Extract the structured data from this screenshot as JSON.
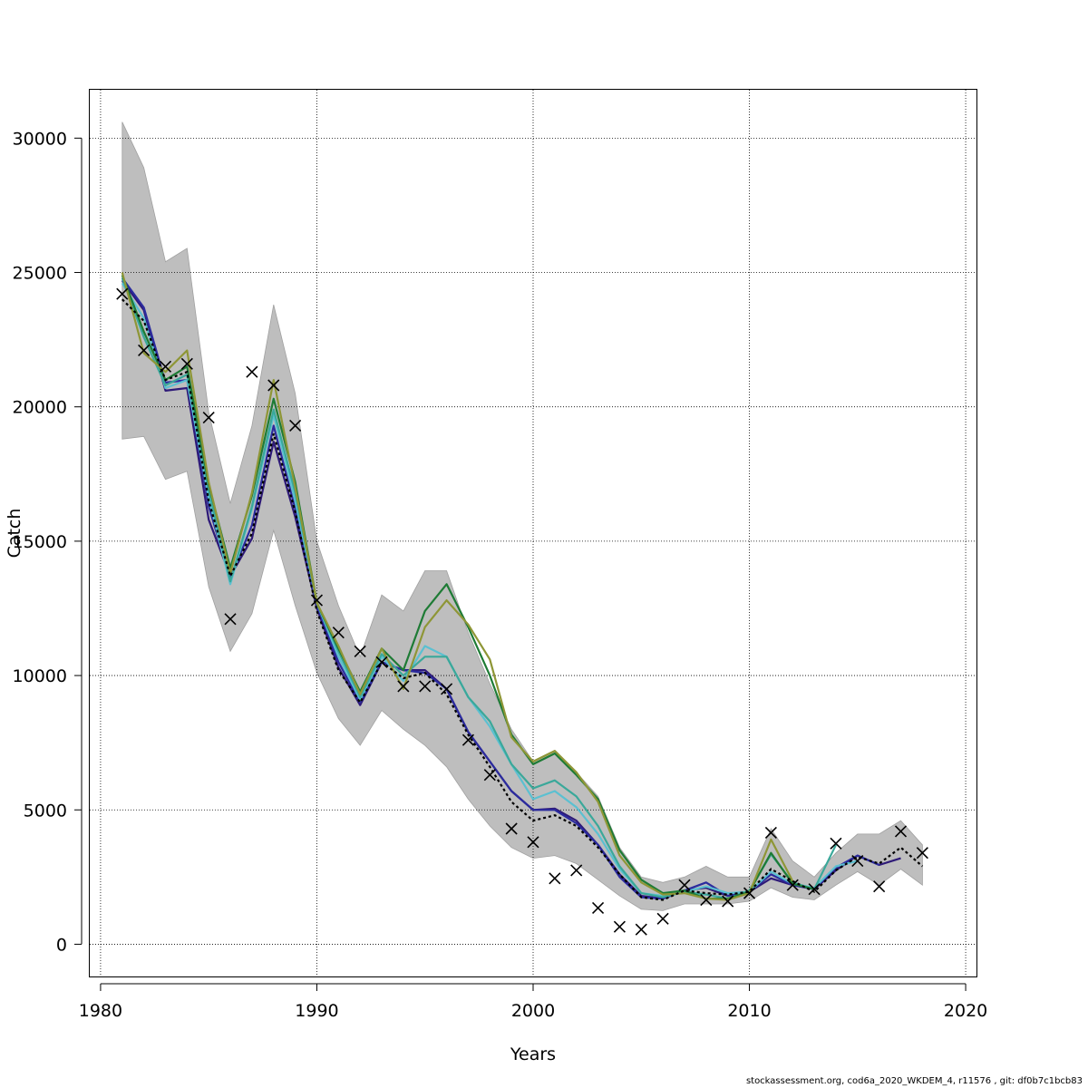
{
  "footer": "stockassessment.org, cod6a_2020_WKDEM_4, r11576 , git: df0b7c1bcb83",
  "chart_data": {
    "type": "line",
    "title": "",
    "xlabel": "Years",
    "ylabel": "Catch",
    "xlim": [
      1979.5,
      2020.5
    ],
    "ylim": [
      -1200,
      31800
    ],
    "grid": true,
    "xticks": [
      1980,
      1990,
      2000,
      2010,
      2020
    ],
    "yticks": [
      0,
      5000,
      10000,
      15000,
      20000,
      25000,
      30000
    ],
    "colors": {
      "band": "#bebebe",
      "dashed": "#000000",
      "observed": "#000000",
      "peels": [
        "#2e1a78",
        "#2b2b9e",
        "#5bc0d1",
        "#3aa89a",
        "#1e7b35",
        "#8e9636"
      ]
    },
    "band": {
      "x": [
        1981,
        1982,
        1983,
        1984,
        1985,
        1986,
        1987,
        1988,
        1989,
        1990,
        1991,
        1992,
        1993,
        1994,
        1995,
        1996,
        1997,
        1998,
        1999,
        2000,
        2001,
        2002,
        2003,
        2004,
        2005,
        2006,
        2007,
        2008,
        2009,
        2010,
        2011,
        2012,
        2013,
        2014,
        2015,
        2016,
        2017,
        2018
      ],
      "upper": [
        30600,
        28900,
        25400,
        25900,
        19800,
        16400,
        19300,
        23800,
        20500,
        15000,
        12600,
        10700,
        13000,
        12400,
        13900,
        13900,
        11600,
        9700,
        8000,
        6800,
        7200,
        6400,
        5500,
        3600,
        2500,
        2300,
        2500,
        2900,
        2500,
        2500,
        4300,
        3100,
        2500,
        3400,
        4100,
        4100,
        4600,
        3700
      ],
      "lower": [
        18800,
        18900,
        17300,
        17600,
        13300,
        10900,
        12300,
        15400,
        12600,
        10100,
        8400,
        7400,
        8700,
        8000,
        7400,
        6600,
        5400,
        4400,
        3600,
        3200,
        3300,
        3000,
        2400,
        1800,
        1300,
        1250,
        1500,
        1500,
        1500,
        1600,
        2100,
        1750,
        1650,
        2200,
        2700,
        2200,
        2800,
        2200
      ]
    },
    "series": [
      {
        "kind": "observed",
        "x": [
          1981,
          1982,
          1983,
          1984,
          1985,
          1986,
          1987,
          1988,
          1989,
          1990,
          1991,
          1992,
          1993,
          1994,
          1995,
          1996,
          1997,
          1998,
          1999,
          2000,
          2001,
          2002,
          2003,
          2004,
          2005,
          2006,
          2007,
          2008,
          2009,
          2010,
          2011,
          2012,
          2013,
          2014,
          2015,
          2016,
          2017,
          2018
        ],
        "values": [
          24200,
          22100,
          21500,
          21600,
          19600,
          12100,
          21300,
          20800,
          19300,
          12800,
          11600,
          10900,
          10500,
          9600,
          9600,
          9500,
          7600,
          6300,
          4300,
          3800,
          2450,
          2750,
          1350,
          650,
          550,
          950,
          2200,
          1650,
          1600,
          1900,
          4150,
          2200,
          2050,
          3750,
          3100,
          2150,
          4200,
          3400
        ]
      },
      {
        "kind": "dashed",
        "x": [
          1981,
          1982,
          1983,
          1984,
          1985,
          1986,
          1987,
          1988,
          1989,
          1990,
          1991,
          1992,
          1993,
          1994,
          1995,
          1996,
          1997,
          1998,
          1999,
          2000,
          2001,
          2002,
          2003,
          2004,
          2005,
          2006,
          2007,
          2008,
          2009,
          2010,
          2011,
          2012,
          2013,
          2014,
          2015,
          2016,
          2017,
          2018
        ],
        "values": [
          24000,
          23200,
          21000,
          21300,
          16500,
          13700,
          15300,
          19000,
          16100,
          12400,
          10200,
          9000,
          10500,
          9900,
          10100,
          9300,
          7800,
          6600,
          5300,
          4600,
          4800,
          4400,
          3600,
          2600,
          1750,
          1650,
          2000,
          1900,
          1850,
          1950,
          2800,
          2350,
          1950,
          2750,
          3250,
          3000,
          3600,
          2900
        ]
      },
      {
        "kind": "peel",
        "x": [
          1981,
          1982,
          1983,
          1984,
          1985,
          1986,
          1987,
          1988,
          1989,
          1990,
          1991,
          1992,
          1993,
          1994,
          1995,
          1996,
          1997,
          1998,
          1999,
          2000,
          2001,
          2002,
          2003,
          2004,
          2005,
          2006,
          2007,
          2008,
          2009,
          2010,
          2011,
          2012,
          2013,
          2014,
          2015,
          2016,
          2017
        ],
        "values": [
          24700,
          23600,
          20600,
          20700,
          15800,
          13700,
          15100,
          18700,
          15900,
          12500,
          10300,
          8900,
          10500,
          10200,
          10200,
          9500,
          7900,
          6800,
          5700,
          5000,
          5050,
          4600,
          3700,
          2600,
          1800,
          1700,
          2000,
          2100,
          1800,
          1950,
          2450,
          2200,
          2050,
          2750,
          3300,
          2950,
          3200
        ]
      },
      {
        "kind": "peel",
        "x": [
          1981,
          1982,
          1983,
          1984,
          1985,
          1986,
          1987,
          1988,
          1989,
          1990,
          1991,
          1992,
          1993,
          1994,
          1995,
          1996,
          1997,
          1998,
          1999,
          2000,
          2001,
          2002,
          2003,
          2004,
          2005,
          2006,
          2007,
          2008,
          2009,
          2010,
          2011,
          2012,
          2013,
          2014,
          2015,
          2016
        ],
        "values": [
          24800,
          23700,
          20900,
          21000,
          16300,
          13600,
          15600,
          19300,
          16200,
          12600,
          10500,
          9000,
          10500,
          10200,
          10100,
          9500,
          7900,
          6800,
          5700,
          5000,
          5000,
          4500,
          3700,
          2500,
          1750,
          1700,
          2000,
          2300,
          1800,
          1950,
          2600,
          2200,
          2050,
          2850,
          3300,
          2950
        ]
      },
      {
        "kind": "peel",
        "x": [
          1981,
          1982,
          1983,
          1984,
          1985,
          1986,
          1987,
          1988,
          1989,
          1990,
          1991,
          1992,
          1993,
          1994,
          1995,
          1996,
          1997,
          1998,
          1999,
          2000,
          2001,
          2002,
          2003,
          2004,
          2005,
          2006,
          2007,
          2008,
          2009,
          2010,
          2011,
          2012,
          2013,
          2014,
          2015
        ],
        "values": [
          24600,
          23300,
          20700,
          21000,
          16600,
          13400,
          16200,
          19700,
          16500,
          12700,
          10700,
          9100,
          10700,
          9800,
          11100,
          10700,
          9200,
          8100,
          6700,
          5400,
          5700,
          5100,
          4100,
          2800,
          1900,
          1800,
          1950,
          2150,
          1900,
          1950,
          2700,
          2250,
          2100,
          2900,
          3100
        ]
      },
      {
        "kind": "peel",
        "x": [
          1981,
          1982,
          1983,
          1984,
          1985,
          1986,
          1987,
          1988,
          1989,
          1990,
          1991,
          1992,
          1993,
          1994,
          1995,
          1996,
          1997,
          1998,
          1999,
          2000,
          2001,
          2002,
          2003,
          2004,
          2005,
          2006,
          2007,
          2008,
          2009,
          2010,
          2011,
          2012,
          2013,
          2014
        ],
        "values": [
          24800,
          22600,
          20800,
          21200,
          16900,
          13500,
          16300,
          19900,
          16800,
          12700,
          10900,
          9200,
          10800,
          10000,
          10700,
          10700,
          9200,
          8300,
          6700,
          5800,
          6100,
          5500,
          4400,
          2900,
          1900,
          1750,
          1950,
          1850,
          1700,
          2000,
          3350,
          2300,
          2050,
          3700
        ]
      },
      {
        "kind": "peel",
        "x": [
          1981,
          1982,
          1983,
          1984,
          1985,
          1986,
          1987,
          1988,
          1989,
          1990,
          1991,
          1992,
          1993,
          1994,
          1995,
          1996,
          1997,
          1998,
          1999,
          2000,
          2001,
          2002,
          2003,
          2004,
          2005,
          2006,
          2007,
          2008,
          2009,
          2010,
          2011,
          2012,
          2013
        ],
        "values": [
          24900,
          22800,
          21000,
          21500,
          17100,
          14000,
          16700,
          20300,
          17200,
          12700,
          11000,
          9400,
          11000,
          10200,
          12400,
          13400,
          11800,
          10000,
          7800,
          6700,
          7100,
          6300,
          5400,
          3500,
          2400,
          1900,
          2000,
          1700,
          1700,
          1950,
          3400,
          2250,
          2050
        ]
      },
      {
        "kind": "peel",
        "x": [
          1981,
          1982,
          1983,
          1984,
          1985,
          1986,
          1987,
          1988,
          1989,
          1990,
          1991,
          1992,
          1993,
          1994,
          1995,
          1996,
          1997,
          1998,
          1999,
          2000,
          2001,
          2002,
          2003,
          2004,
          2005,
          2006,
          2007,
          2008,
          2009,
          2010,
          2011,
          2012
        ],
        "values": [
          25000,
          22000,
          21300,
          22100,
          17200,
          13800,
          16800,
          21000,
          17000,
          12700,
          11100,
          9300,
          11000,
          9500,
          11800,
          12800,
          11900,
          10600,
          7700,
          6800,
          7200,
          6400,
          5300,
          3300,
          2300,
          1850,
          1900,
          1700,
          1650,
          1900,
          3900,
          2350
        ]
      }
    ]
  }
}
